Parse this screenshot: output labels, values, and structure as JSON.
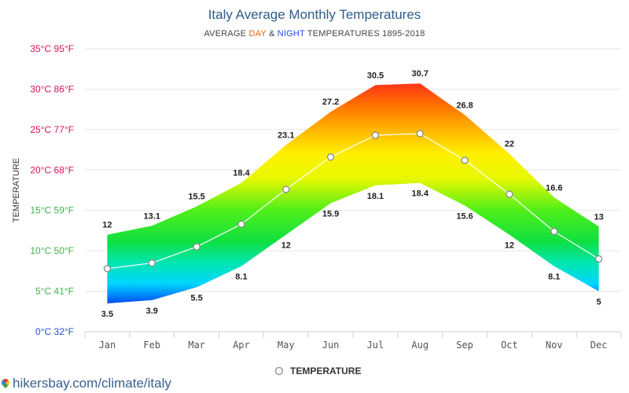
{
  "title": "Italy Average Monthly Temperatures",
  "subtitle": {
    "prefix": "AVERAGE ",
    "day_word": "DAY",
    "and_word": " & ",
    "night_word": "NIGHT",
    "suffix": " TEMPERATURES 1895-2018"
  },
  "footer": {
    "text": "hikersbay.com/climate/italy",
    "icon": "map-pin-icon"
  },
  "colors": {
    "title": "#2f5d8a",
    "day_word": "#e8650f",
    "night_word": "#1f4fd8",
    "avg_line": "#ffffff",
    "grid": "#e6e6e6"
  },
  "chart_data": {
    "type": "area",
    "title": "Italy Average Monthly Temperatures",
    "ylabel": "TEMPERATURE",
    "xlabel": "",
    "categories": [
      "Jan",
      "Feb",
      "Mar",
      "Apr",
      "May",
      "Jun",
      "Jul",
      "Aug",
      "Sep",
      "Oct",
      "Nov",
      "Dec"
    ],
    "ylim": [
      0,
      35
    ],
    "yticks": [
      {
        "value": 0,
        "label": "0°C 32°F",
        "color": "#1f4fd8"
      },
      {
        "value": 5,
        "label": "5°C 41°F",
        "color": "#3bb54a"
      },
      {
        "value": 10,
        "label": "10°C 50°F",
        "color": "#3bb54a"
      },
      {
        "value": 15,
        "label": "15°C 59°F",
        "color": "#3bb54a"
      },
      {
        "value": 20,
        "label": "20°C 68°F",
        "color": "#e0105a"
      },
      {
        "value": 25,
        "label": "25°C 77°F",
        "color": "#e0105a"
      },
      {
        "value": 30,
        "label": "30°C 86°F",
        "color": "#e0105a"
      },
      {
        "value": 35,
        "label": "35°C 95°F",
        "color": "#e0105a"
      }
    ],
    "grid": true,
    "legend_position": "bottom-center",
    "series": [
      {
        "name": "DAY",
        "values": [
          12,
          13.1,
          15.5,
          18.4,
          23.1,
          27.2,
          30.5,
          30.7,
          26.8,
          22,
          16.6,
          13
        ]
      },
      {
        "name": "NIGHT",
        "values": [
          3.5,
          3.9,
          5.5,
          8.1,
          12,
          15.9,
          18.1,
          18.4,
          15.6,
          12,
          8.1,
          5
        ]
      },
      {
        "name": "TEMPERATURE",
        "values": [
          7.8,
          8.5,
          10.5,
          13.3,
          17.6,
          21.6,
          24.3,
          24.5,
          21.2,
          17,
          12.4,
          9
        ]
      }
    ],
    "day_labels": [
      "12",
      "13.1",
      "15.5",
      "18.4",
      "23.1",
      "27.2",
      "30.5",
      "30.7",
      "26.8",
      "22",
      "16.6",
      "13"
    ],
    "night_labels": [
      "3.5",
      "3.9",
      "5.5",
      "8.1",
      "12",
      "15.9",
      "18.1",
      "18.4",
      "15.6",
      "12",
      "8.1",
      "5"
    ],
    "legend": [
      {
        "label": "TEMPERATURE",
        "marker": "open-circle"
      }
    ]
  }
}
